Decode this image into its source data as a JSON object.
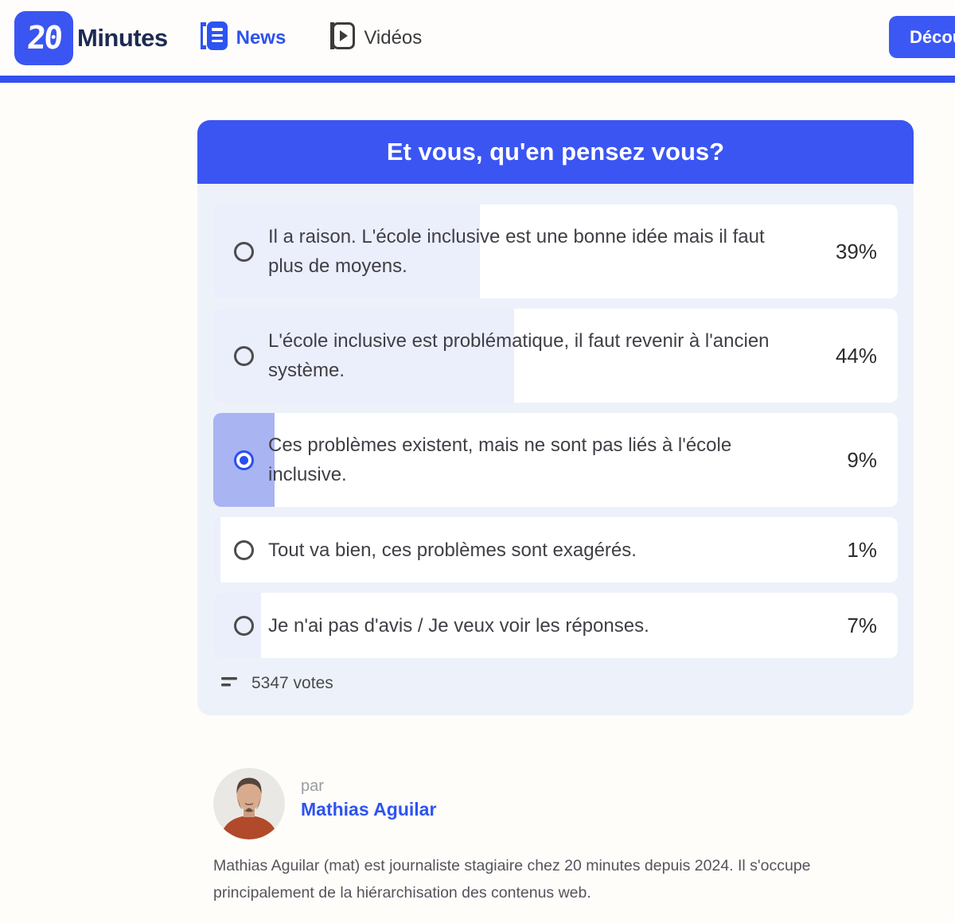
{
  "colors": {
    "accent_blue": "#3b55f2",
    "header_bar_blue": "#3450ef",
    "brand_navy": "#1d2b52",
    "card_background": "#edf2fa",
    "option_fill": "#ebeefb",
    "option_fill_selected": "#a9b4f2",
    "link_blue": "#2d53f1"
  },
  "header": {
    "brand": {
      "logo_text": "20",
      "name": "Minutes"
    },
    "nav": [
      {
        "label": "News",
        "icon": "news-icon",
        "active": true
      },
      {
        "label": "Vidéos",
        "icon": "video-play-icon",
        "active": false
      }
    ],
    "cta_label": "Découvrir"
  },
  "poll": {
    "title": "Et vous, qu'en pensez vous?",
    "options": [
      {
        "label": "Il a raison. L'école inclusive est une bonne idée mais il faut plus de moyens.",
        "percent_label": "39%",
        "percent": 39,
        "selected": false
      },
      {
        "label": "L'école inclusive est problématique, il faut revenir à l'ancien système.",
        "percent_label": "44%",
        "percent": 44,
        "selected": false
      },
      {
        "label": "Ces problèmes existent, mais ne sont pas liés à l'école inclusive.",
        "percent_label": "9%",
        "percent": 9,
        "selected": true
      },
      {
        "label": "Tout va bien, ces problèmes sont exagérés.",
        "percent_label": "1%",
        "percent": 1,
        "selected": false
      },
      {
        "label": "Je n'ai pas d'avis / Je veux voir les réponses.",
        "percent_label": "7%",
        "percent": 7,
        "selected": false
      }
    ],
    "votes_icon": "bar-lines-icon",
    "votes_label": "5347 votes"
  },
  "author": {
    "prefix": "par",
    "name": "Mathias Aguilar",
    "avatar": "portrait-photo",
    "bio": "Mathias Aguilar (mat) est journaliste stagiaire chez 20 minutes depuis 2024. Il s'occupe principalement de la hiérarchisation des contenus web."
  }
}
